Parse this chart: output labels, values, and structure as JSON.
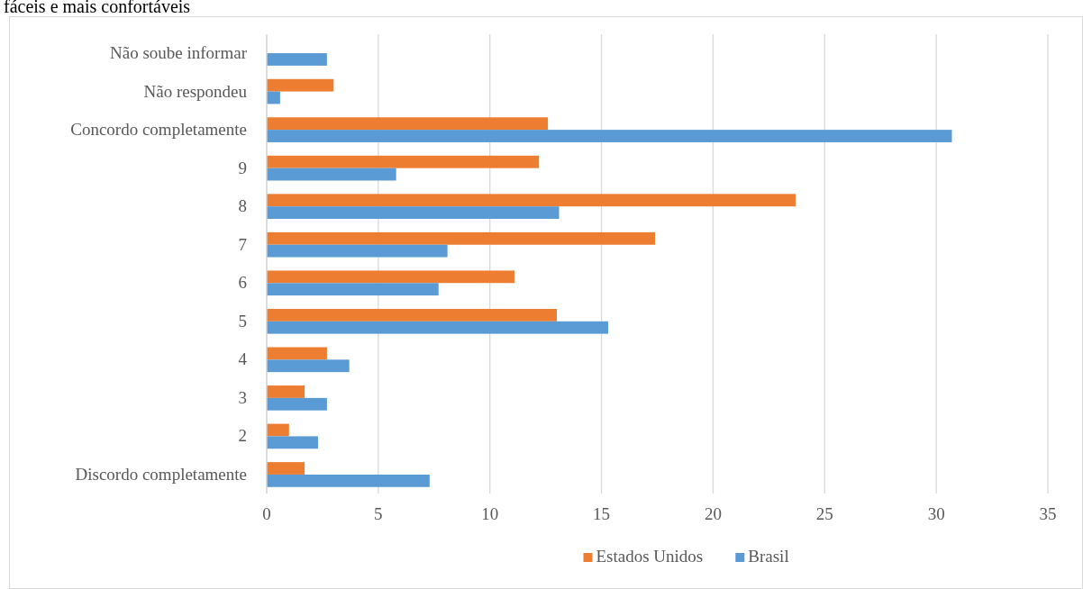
{
  "chart_data": {
    "type": "bar",
    "orientation": "horizontal",
    "title": "fáceis e mais confortáveis",
    "categories": [
      "Não soube informar",
      "Não respondeu",
      "Concordo completamente",
      "9",
      "8",
      "7",
      "6",
      "5",
      "4",
      "3",
      "2",
      "Discordo completamente"
    ],
    "series": [
      {
        "name": "Estados Unidos",
        "color": "#ed7d31",
        "values": [
          null,
          3.0,
          12.6,
          12.2,
          23.7,
          17.4,
          11.1,
          13.0,
          2.7,
          1.7,
          1.0,
          1.7
        ]
      },
      {
        "name": "Brasil",
        "color": "#5b9bd5",
        "values": [
          2.7,
          0.6,
          30.7,
          5.8,
          13.1,
          8.1,
          7.7,
          15.3,
          3.7,
          2.7,
          2.3,
          7.3
        ]
      }
    ],
    "xlim": [
      0,
      35
    ],
    "xticks": [
      0,
      5,
      10,
      15,
      20,
      25,
      30,
      35
    ],
    "grid": "x",
    "legend": "bottom"
  }
}
